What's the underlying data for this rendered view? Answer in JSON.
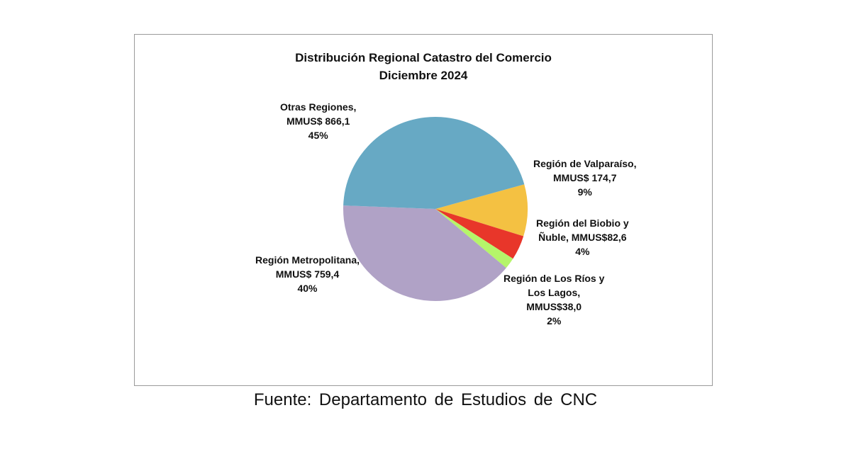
{
  "chart_data": {
    "type": "pie",
    "title": [
      "Distribución Regional Catastro del Comercio",
      "Diciembre 2024"
    ],
    "slices": [
      {
        "name": "Región de Valparaíso",
        "value": 174.7,
        "percent": 9,
        "color": "#f4c142",
        "label_lines": [
          "Región de Valparaíso,",
          "MMUS$ 174,7",
          "9%"
        ]
      },
      {
        "name": "Región del Biobio y Ñuble",
        "value": 82.6,
        "percent": 4,
        "color": "#e8362a",
        "label_lines": [
          "Región del Biobio y",
          "Ñuble, MMUS$82,6",
          "4%"
        ]
      },
      {
        "name": "Región de Los Ríos y Los Lagos",
        "value": 38.0,
        "percent": 2,
        "color": "#b5f56a",
        "label_lines": [
          "Región de Los Ríos y",
          "Los Lagos,",
          "MMUS$38,0",
          "2%"
        ]
      },
      {
        "name": "Región Metropolitana",
        "value": 759.4,
        "percent": 40,
        "color": "#b0a2c6",
        "label_lines": [
          "Región Metropolitana,",
          "MMUS$ 759,4",
          "40%"
        ]
      },
      {
        "name": "Otras Regiones",
        "value": 866.1,
        "percent": 45,
        "color": "#67a9c4",
        "label_lines": [
          "Otras Regiones,",
          "MMUS$ 866,1",
          "45%"
        ]
      }
    ],
    "legend": "none"
  },
  "source": "Fuente:  Departamento  de Estudios  de CNC"
}
